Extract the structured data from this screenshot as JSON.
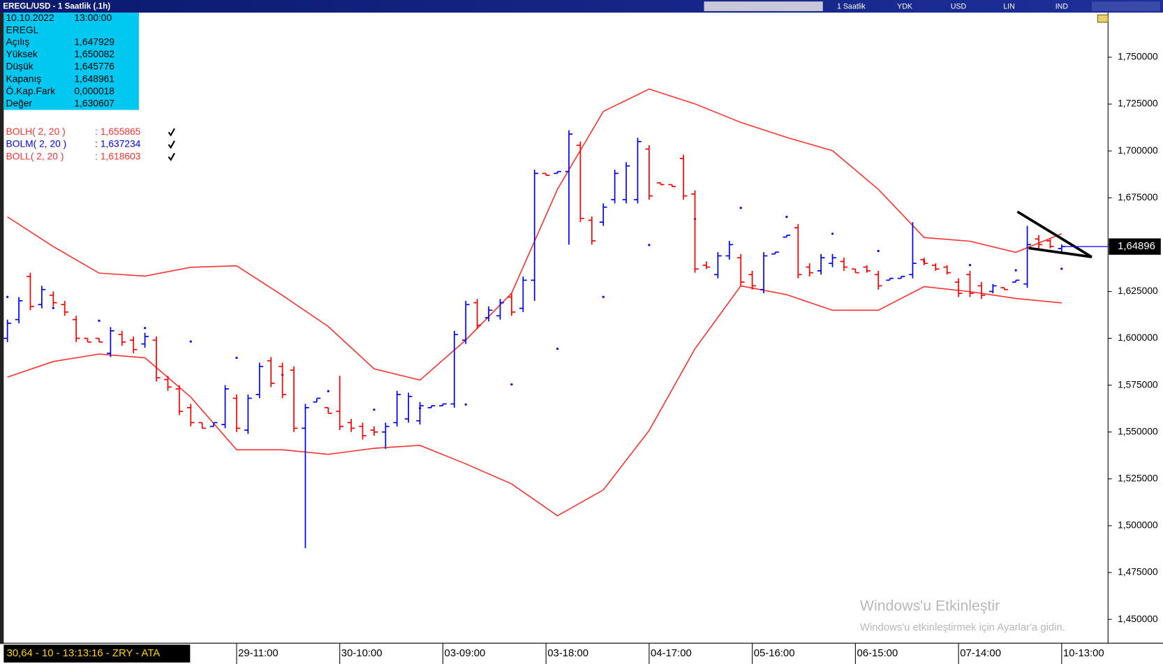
{
  "window": {
    "title": "EREGL/USD - 1 Saatlik (.1h)",
    "toolbar": [
      "1 Saatlik",
      "YDK",
      "USD",
      "LIN",
      "IND"
    ]
  },
  "info_panel": {
    "date": "10.10.2022",
    "time": "13:00:00",
    "symbol": "EREGL",
    "rows": [
      [
        "Açılış",
        "1,647929"
      ],
      [
        "Yüksek",
        "1,650082"
      ],
      [
        "Düşük",
        "1,645776"
      ],
      [
        "Kapanış",
        "1,648961"
      ],
      [
        "Ö.Kap.Fark",
        "0,000018"
      ],
      [
        "Değer",
        "1,630607"
      ]
    ]
  },
  "status_bar": "30,64 - 10 - 13:13:16 - ZRY - ATA",
  "watermark": {
    "title": "Windows'u Etkinleştir",
    "subtitle": "Windows'u etkinleştirmek için Ayarlar'a gidin."
  },
  "chart_data": {
    "type": "ohlc",
    "categories": [
      null,
      null,
      null,
      null,
      null,
      null,
      null,
      null,
      null,
      null,
      null,
      null,
      null,
      null,
      null,
      null,
      null,
      null,
      null,
      null,
      "29-11:00",
      null,
      null,
      null,
      null,
      null,
      null,
      null,
      null,
      "30-10:00",
      null,
      null,
      null,
      null,
      null,
      null,
      null,
      null,
      "03-09:00",
      null,
      null,
      null,
      null,
      null,
      null,
      null,
      null,
      "03-18:00",
      null,
      null,
      null,
      null,
      null,
      null,
      null,
      null,
      "04-17:00",
      null,
      null,
      null,
      null,
      null,
      null,
      null,
      null,
      "05-16:00",
      null,
      null,
      null,
      null,
      null,
      null,
      null,
      null,
      "06-15:00",
      null,
      null,
      null,
      null,
      null,
      null,
      null,
      null,
      "07-14:00",
      null,
      null,
      null,
      null,
      null,
      null,
      null,
      null,
      "10-13:00"
    ],
    "open": [
      1.6,
      1.61,
      1.633,
      1.618,
      1.623,
      1.618,
      1.61,
      1.6,
      1.6,
      1.592,
      1.602,
      1.599,
      1.597,
      1.599,
      1.578,
      1.573,
      1.563,
      1.555,
      1.553,
      1.554,
      1.568,
      1.551,
      1.57,
      1.588,
      1.585,
      1.583,
      1.552,
      1.566,
      1.563,
      1.561,
      1.555,
      1.553,
      1.551,
      1.55,
      1.555,
      1.557,
      1.556,
      1.563,
      1.564,
      1.565,
      1.599,
      1.619,
      1.611,
      1.612,
      1.622,
      1.616,
      1.631,
      1.688,
      1.688,
      1.689,
      1.703,
      1.663,
      1.662,
      1.674,
      1.674,
      1.674,
      1.701,
      1.683,
      1.682,
      1.696,
      1.677,
      1.639,
      1.634,
      1.644,
      1.643,
      1.634,
      1.626,
      1.645,
      1.654,
      1.659,
      1.638,
      1.636,
      1.64,
      1.641,
      1.637,
      1.638,
      1.634,
      1.631,
      1.632,
      1.634,
      1.642,
      1.639,
      1.638,
      1.63,
      1.634,
      1.628,
      1.625,
      1.627,
      1.63,
      1.629,
      1.653,
      1.652,
      1.647929
    ],
    "high": [
      1.61,
      1.622,
      1.635,
      1.628,
      1.625,
      1.62,
      1.612,
      1.6,
      1.6,
      1.606,
      1.604,
      1.601,
      1.603,
      1.601,
      1.58,
      1.575,
      1.565,
      1.555,
      1.555,
      1.575,
      1.57,
      1.57,
      1.587,
      1.59,
      1.587,
      1.585,
      1.565,
      1.568,
      1.563,
      1.58,
      1.557,
      1.555,
      1.553,
      1.555,
      1.572,
      1.571,
      1.566,
      1.564,
      1.565,
      1.604,
      1.62,
      1.621,
      1.617,
      1.621,
      1.624,
      1.633,
      1.69,
      1.688,
      1.689,
      1.711,
      1.705,
      1.665,
      1.672,
      1.69,
      1.694,
      1.707,
      1.703,
      1.683,
      1.682,
      1.698,
      1.679,
      1.641,
      1.646,
      1.652,
      1.645,
      1.636,
      1.646,
      1.646,
      1.655,
      1.661,
      1.64,
      1.645,
      1.645,
      1.643,
      1.637,
      1.639,
      1.636,
      1.632,
      1.633,
      1.662,
      1.643,
      1.64,
      1.639,
      1.632,
      1.636,
      1.63,
      1.629,
      1.627,
      1.631,
      1.66,
      1.655,
      1.653,
      1.650082
    ],
    "low": [
      1.598,
      1.608,
      1.615,
      1.616,
      1.617,
      1.612,
      1.598,
      1.598,
      1.598,
      1.59,
      1.596,
      1.592,
      1.595,
      1.577,
      1.572,
      1.559,
      1.553,
      1.552,
      1.553,
      1.552,
      1.55,
      1.549,
      1.568,
      1.574,
      1.568,
      1.55,
      1.488,
      1.566,
      1.56,
      1.551,
      1.55,
      1.546,
      1.548,
      1.541,
      1.553,
      1.555,
      1.554,
      1.563,
      1.564,
      1.563,
      1.597,
      1.605,
      1.609,
      1.61,
      1.612,
      1.614,
      1.62,
      1.687,
      1.688,
      1.65,
      1.662,
      1.65,
      1.66,
      1.672,
      1.672,
      1.672,
      1.674,
      1.682,
      1.681,
      1.674,
      1.635,
      1.637,
      1.632,
      1.642,
      1.628,
      1.626,
      1.624,
      1.645,
      1.654,
      1.632,
      1.633,
      1.634,
      1.638,
      1.636,
      1.635,
      1.635,
      1.626,
      1.631,
      1.632,
      1.632,
      1.639,
      1.636,
      1.634,
      1.622,
      1.622,
      1.621,
      1.624,
      1.626,
      1.63,
      1.627,
      1.648,
      1.648,
      1.645776
    ],
    "close": [
      1.608,
      1.62,
      1.617,
      1.626,
      1.619,
      1.614,
      1.6,
      1.598,
      1.598,
      1.604,
      1.598,
      1.594,
      1.601,
      1.579,
      1.574,
      1.561,
      1.555,
      1.552,
      1.555,
      1.573,
      1.552,
      1.568,
      1.585,
      1.576,
      1.57,
      1.552,
      1.563,
      1.568,
      1.56,
      1.553,
      1.552,
      1.548,
      1.55,
      1.553,
      1.57,
      1.569,
      1.564,
      1.564,
      1.565,
      1.602,
      1.618,
      1.607,
      1.615,
      1.619,
      1.614,
      1.631,
      1.688,
      1.687,
      1.689,
      1.709,
      1.664,
      1.652,
      1.67,
      1.688,
      1.692,
      1.705,
      1.676,
      1.682,
      1.681,
      1.676,
      1.637,
      1.638,
      1.644,
      1.65,
      1.63,
      1.628,
      1.644,
      1.646,
      1.655,
      1.634,
      1.635,
      1.643,
      1.643,
      1.638,
      1.635,
      1.636,
      1.628,
      1.632,
      1.633,
      1.64,
      1.64,
      1.637,
      1.635,
      1.624,
      1.624,
      1.623,
      1.628,
      1.626,
      1.631,
      1.65,
      1.65,
      1.649,
      1.648961
    ],
    "up_color": "#0000ff",
    "down_color": "#ff0000",
    "series": [
      {
        "name": "BOLH( 2, 20 )",
        "legend_value": ": 1,655865",
        "color": "#ff3030",
        "style": "line",
        "x": [
          0,
          4,
          8,
          12,
          16,
          20,
          24,
          28,
          32,
          36,
          40,
          44,
          48,
          52,
          56,
          60,
          64,
          68,
          72,
          76,
          80,
          84,
          88,
          92
        ],
        "values": [
          1.6648,
          1.649,
          1.6348,
          1.6332,
          1.6379,
          1.6387,
          1.6229,
          1.6063,
          1.5837,
          1.5777,
          1.5991,
          1.6241,
          1.6795,
          1.7211,
          1.733,
          1.7251,
          1.7152,
          1.7072,
          1.7001,
          1.6795,
          1.6538,
          1.6518,
          1.6459,
          1.6558
        ]
      },
      {
        "name": "BOLM( 2, 20 )",
        "legend_value": ": 1,637234",
        "color": "#0000ff",
        "style": "dots",
        "x": [
          0,
          4,
          8,
          12,
          16,
          20,
          24,
          28,
          32,
          36,
          40,
          44,
          48,
          52,
          56,
          60,
          64,
          68,
          72,
          76,
          80,
          84,
          88,
          92
        ],
        "values": [
          1.6221,
          1.6162,
          1.6094,
          1.6055,
          1.5983,
          1.5896,
          1.5805,
          1.5718,
          1.5619,
          1.5627,
          1.5647,
          1.5754,
          1.5944,
          1.6221,
          1.6498,
          1.6637,
          1.6696,
          1.6648,
          1.6558,
          1.6466,
          1.6411,
          1.6391,
          1.6363,
          1.6371
        ]
      },
      {
        "name": "BOLL( 2, 20 )",
        "legend_value": ": 1,618603",
        "color": "#ff3030",
        "style": "line",
        "x": [
          0,
          4,
          8,
          12,
          16,
          20,
          24,
          28,
          32,
          36,
          40,
          44,
          48,
          52,
          56,
          60,
          64,
          68,
          72,
          76,
          80,
          84,
          88,
          92
        ],
        "values": [
          1.5793,
          1.5876,
          1.5916,
          1.5896,
          1.5686,
          1.5405,
          1.5405,
          1.5381,
          1.5413,
          1.5429,
          1.533,
          1.5223,
          1.5053,
          1.5191,
          1.5508,
          1.5944,
          1.628,
          1.6233,
          1.615,
          1.615,
          1.6276,
          1.6249,
          1.6213,
          1.6189
        ]
      }
    ],
    "last_price": {
      "value": 1.64896,
      "label": "1,64896"
    },
    "ylim": [
      1.4373,
      1.7738
    ],
    "yticks": [
      {
        "value": 1.45,
        "label": "1,450000"
      },
      {
        "value": 1.475,
        "label": "1,475000"
      },
      {
        "value": 1.5,
        "label": "1,500000"
      },
      {
        "value": 1.525,
        "label": "1,525000"
      },
      {
        "value": 1.55,
        "label": "1,550000"
      },
      {
        "value": 1.575,
        "label": "1,575000"
      },
      {
        "value": 1.6,
        "label": "1,600000"
      },
      {
        "value": 1.625,
        "label": "1,625000"
      },
      {
        "value": 1.65,
        "label": "1,650000"
      },
      {
        "value": 1.675,
        "label": "1,675000"
      },
      {
        "value": 1.7,
        "label": "1,700000"
      },
      {
        "value": 1.725,
        "label": "1,725000"
      },
      {
        "value": 1.75,
        "label": "1,750000"
      }
    ]
  }
}
